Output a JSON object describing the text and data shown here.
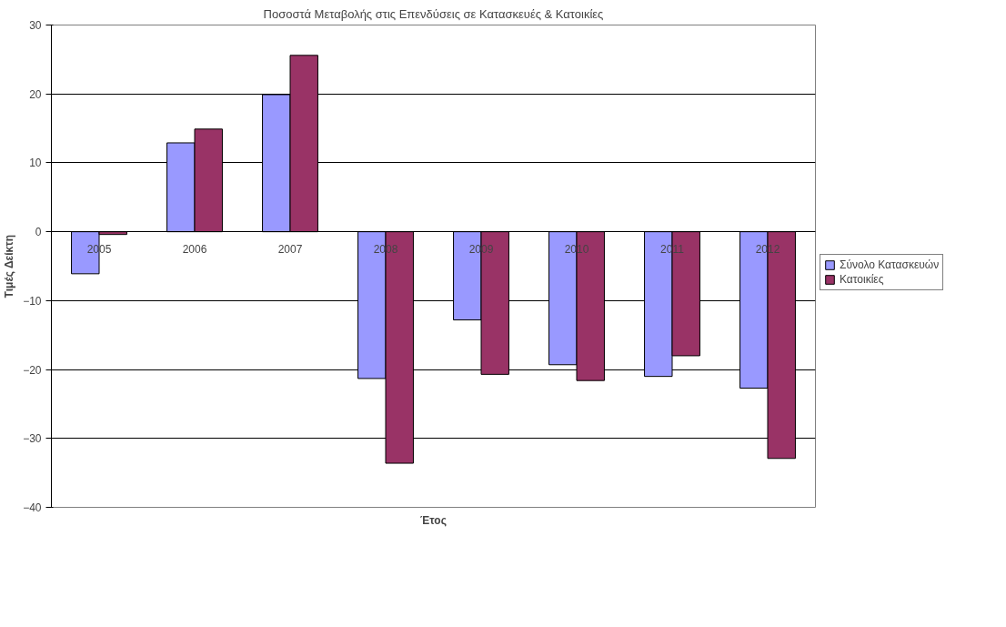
{
  "chart_data": {
    "type": "bar",
    "title": "Ποσοστά Μεταβολής στις Επενδύσεις σε Κατασκευές & Κατοικίες",
    "xlabel": "Έτος",
    "ylabel": "Τιμές Δείκτη",
    "categories": [
      "2005",
      "2006",
      "2007",
      "2008",
      "2009",
      "2010",
      "2011",
      "2012"
    ],
    "series": [
      {
        "name": "Σύνολο Κατασκευών",
        "color": "#9999ff",
        "values": [
          -6.1,
          12.9,
          19.9,
          -21.3,
          -12.8,
          -19.3,
          -21.0,
          -22.7
        ]
      },
      {
        "name": "Κατοικίες",
        "color": "#993366",
        "values": [
          -0.4,
          14.9,
          25.6,
          -33.6,
          -20.7,
          -21.6,
          -18.0,
          -32.9
        ]
      }
    ],
    "ylim": [
      -40,
      30
    ],
    "yticks": [
      -40,
      -30,
      -20,
      -10,
      0,
      10,
      20,
      30
    ],
    "grid": "y",
    "legend": "right"
  }
}
